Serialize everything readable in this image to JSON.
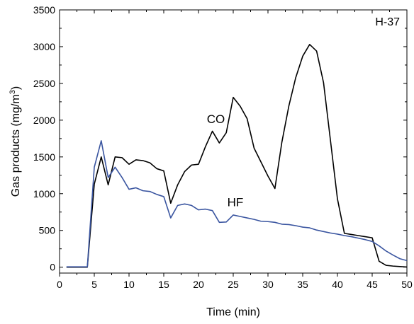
{
  "chart_data": {
    "type": "line",
    "title": "",
    "panel_label": "H-37",
    "xlabel": "Time (min)",
    "ylabel_main": "Gas products (mg/m",
    "ylabel_sup": "3",
    "ylabel_tail": ")",
    "xlim": [
      0,
      50
    ],
    "ylim": [
      -80,
      3500
    ],
    "xticks": [
      0,
      5,
      10,
      15,
      20,
      25,
      30,
      35,
      40,
      45,
      50
    ],
    "yticks": [
      0,
      500,
      1000,
      1500,
      2000,
      2500,
      3000,
      3500
    ],
    "grid": false,
    "legend": "none",
    "series": [
      {
        "name": "CO",
        "color": "#000000",
        "label_at": [
          22.5,
          1960
        ],
        "points": [
          [
            1,
            0
          ],
          [
            2,
            0
          ],
          [
            3,
            0
          ],
          [
            4,
            0
          ],
          [
            5,
            1130
          ],
          [
            6,
            1500
          ],
          [
            7,
            1120
          ],
          [
            8,
            1500
          ],
          [
            9,
            1490
          ],
          [
            10,
            1400
          ],
          [
            11,
            1460
          ],
          [
            12,
            1450
          ],
          [
            13,
            1420
          ],
          [
            14,
            1340
          ],
          [
            15,
            1310
          ],
          [
            16,
            870
          ],
          [
            17,
            1120
          ],
          [
            18,
            1300
          ],
          [
            19,
            1390
          ],
          [
            20,
            1400
          ],
          [
            21,
            1640
          ],
          [
            22,
            1850
          ],
          [
            23,
            1690
          ],
          [
            24,
            1830
          ],
          [
            25,
            2310
          ],
          [
            26,
            2190
          ],
          [
            27,
            2020
          ],
          [
            28,
            1620
          ],
          [
            29,
            1430
          ],
          [
            30,
            1240
          ],
          [
            31,
            1070
          ],
          [
            32,
            1700
          ],
          [
            33,
            2190
          ],
          [
            34,
            2580
          ],
          [
            35,
            2870
          ],
          [
            36,
            3030
          ],
          [
            37,
            2940
          ],
          [
            38,
            2510
          ],
          [
            39,
            1720
          ],
          [
            40,
            930
          ],
          [
            41,
            460
          ],
          [
            42,
            445
          ],
          [
            43,
            430
          ],
          [
            44,
            415
          ],
          [
            45,
            400
          ],
          [
            46,
            80
          ],
          [
            47,
            25
          ],
          [
            48,
            15
          ],
          [
            49,
            8
          ],
          [
            50,
            3
          ]
        ]
      },
      {
        "name": "HF",
        "color": "#3a55a0",
        "label_at": [
          25.3,
          830
        ],
        "points": [
          [
            1,
            5
          ],
          [
            2,
            5
          ],
          [
            3,
            5
          ],
          [
            4,
            5
          ],
          [
            5,
            1360
          ],
          [
            6,
            1720
          ],
          [
            7,
            1220
          ],
          [
            8,
            1360
          ],
          [
            9,
            1220
          ],
          [
            10,
            1060
          ],
          [
            11,
            1080
          ],
          [
            12,
            1040
          ],
          [
            13,
            1030
          ],
          [
            14,
            990
          ],
          [
            15,
            960
          ],
          [
            16,
            670
          ],
          [
            17,
            840
          ],
          [
            18,
            860
          ],
          [
            19,
            840
          ],
          [
            20,
            780
          ],
          [
            21,
            790
          ],
          [
            22,
            770
          ],
          [
            23,
            610
          ],
          [
            24,
            615
          ],
          [
            25,
            710
          ],
          [
            26,
            690
          ],
          [
            27,
            670
          ],
          [
            28,
            650
          ],
          [
            29,
            625
          ],
          [
            30,
            620
          ],
          [
            31,
            610
          ],
          [
            32,
            585
          ],
          [
            33,
            580
          ],
          [
            34,
            565
          ],
          [
            35,
            545
          ],
          [
            36,
            535
          ],
          [
            37,
            505
          ],
          [
            38,
            485
          ],
          [
            39,
            465
          ],
          [
            40,
            450
          ],
          [
            41,
            430
          ],
          [
            42,
            415
          ],
          [
            43,
            395
          ],
          [
            44,
            375
          ],
          [
            45,
            350
          ],
          [
            46,
            290
          ],
          [
            47,
            220
          ],
          [
            48,
            165
          ],
          [
            49,
            115
          ],
          [
            50,
            90
          ]
        ]
      }
    ]
  }
}
